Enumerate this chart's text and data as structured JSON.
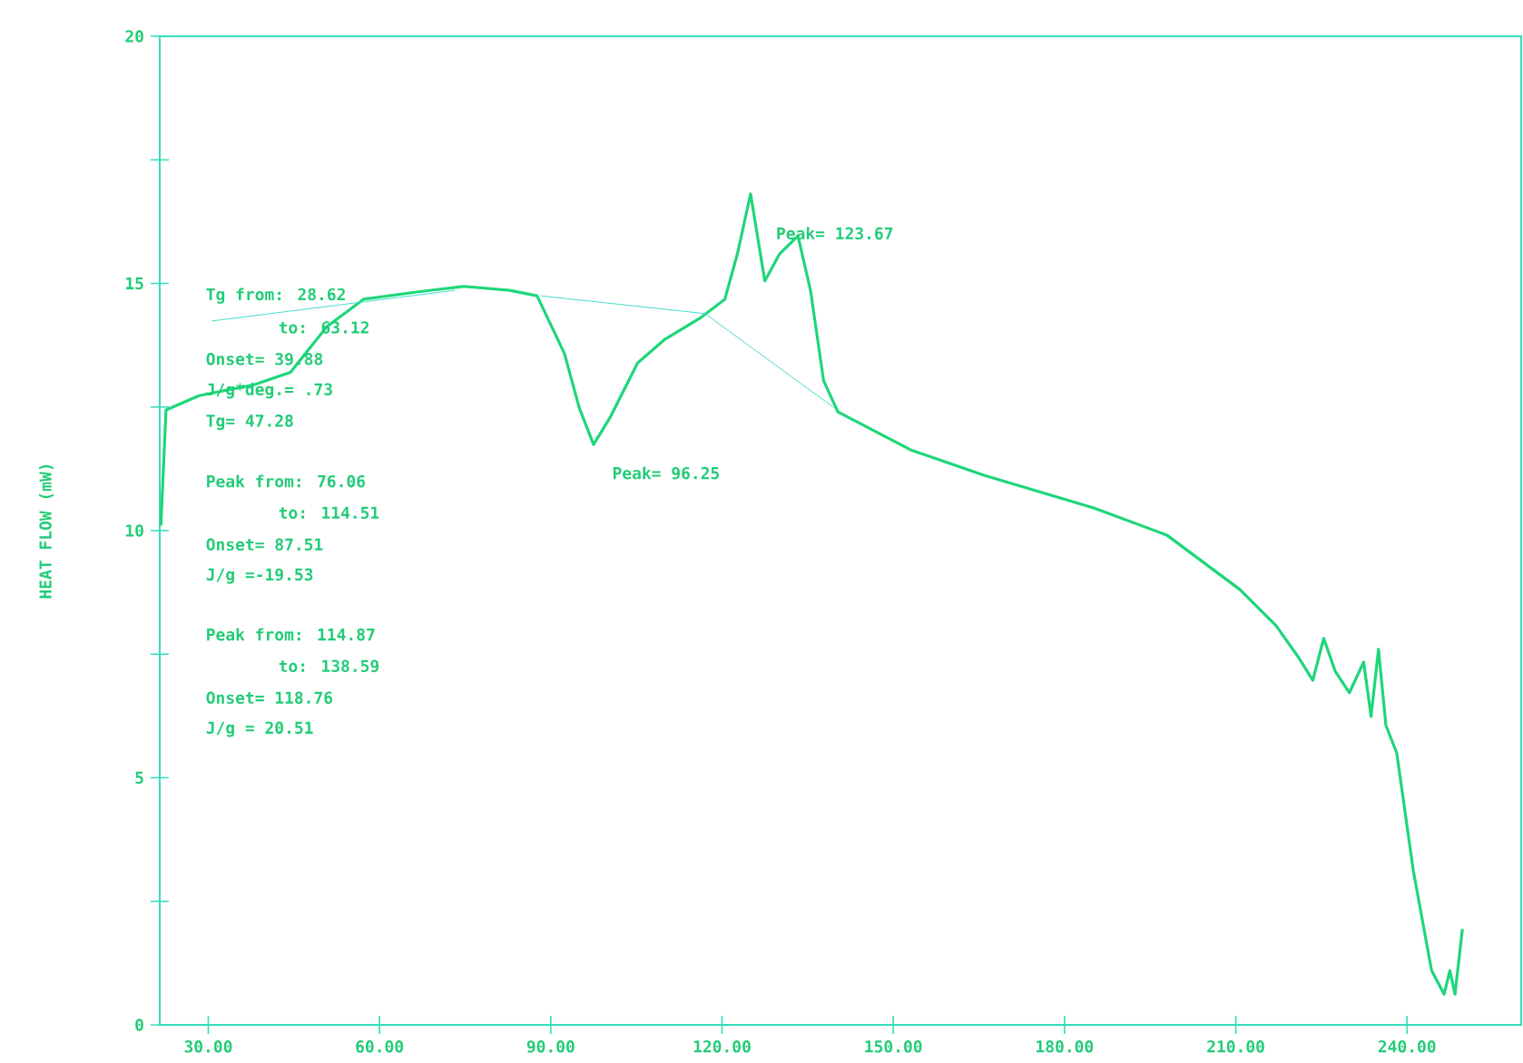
{
  "chart_data": {
    "type": "line",
    "ylabel": "HEAT FLOW (mW)",
    "xlim": [
      21.5,
      260
    ],
    "ylim": [
      0,
      20
    ],
    "xticks": [
      {
        "value": 30,
        "label": "30.00"
      },
      {
        "value": 60,
        "label": "60.00"
      },
      {
        "value": 90,
        "label": "90.00"
      },
      {
        "value": 120,
        "label": "120.00"
      },
      {
        "value": 150,
        "label": "150.00"
      },
      {
        "value": 180,
        "label": "180.00"
      },
      {
        "value": 210,
        "label": "210.00"
      },
      {
        "value": 240,
        "label": "240.00"
      }
    ],
    "yticks": [
      0,
      {
        "value": 2.5,
        "label": null
      },
      5,
      {
        "value": 7.5,
        "label": null
      },
      10,
      {
        "value": 12.5,
        "label": null
      },
      15,
      {
        "value": 17.5,
        "label": null
      },
      20
    ],
    "grid": false,
    "marker": "none",
    "line_style": "solid",
    "series": [
      {
        "color": "#1ed67a",
        "x": [
          21.7,
          22.6,
          28.4,
          38,
          44.4,
          50.8,
          57.2,
          66.8,
          74.8,
          82.8,
          87.6,
          92.4,
          95,
          97.5,
          100.4,
          105.2,
          110,
          116.3,
          120.5,
          122.7,
          125,
          127.5,
          130.1,
          133.3,
          135.5,
          137.8,
          140.3,
          153.1,
          165.9,
          185.1,
          197.9,
          204.3,
          210.7,
          217.1,
          220.9,
          223.5,
          225.4,
          227.4,
          229.9,
          232.4,
          233.7,
          235,
          236.3,
          238.2,
          241.1,
          244.3,
          246.5,
          247.5,
          248.4,
          249.7
        ],
        "values": [
          10.1,
          12.44,
          12.73,
          12.95,
          13.2,
          14.13,
          14.68,
          14.83,
          14.94,
          14.86,
          14.75,
          13.58,
          12.48,
          11.74,
          12.29,
          13.39,
          13.87,
          14.31,
          14.68,
          15.6,
          16.81,
          15.05,
          15.6,
          15.96,
          14.86,
          13.03,
          12.4,
          11.63,
          11.12,
          10.46,
          9.91,
          9.36,
          8.81,
          8.07,
          7.45,
          6.97,
          7.82,
          7.16,
          6.72,
          7.34,
          6.24,
          7.6,
          6.06,
          5.5,
          3.12,
          1.1,
          0.62,
          1.1,
          0.62,
          1.94
        ]
      },
      {
        "color": "#44ddcc",
        "x": [
          30.6,
          73.2
        ],
        "values": [
          14.24,
          14.86
        ]
      },
      {
        "color": "#44ddcc",
        "x": [
          88.2,
          117,
          139.7
        ],
        "values": [
          14.75,
          14.39,
          12.48
        ]
      }
    ],
    "annotations": [
      "Tg from: 28.62",
      "to: 63.12",
      "Onset= 39.88",
      "J/g*deg.= .73",
      "Tg= 47.28",
      "Peak from: 76.06",
      "to: 114.51",
      "Onset= 87.51",
      "J/g =-19.53",
      "Peak from: 114.87",
      "to: 138.59",
      "Onset= 118.76",
      "J/g = 20.51",
      {
        "text": "Peak= 96.25",
        "x": 96.25,
        "y": 11.74
      },
      {
        "text": "Peak= 123.67",
        "x": 123.67,
        "y": 16.81
      }
    ]
  }
}
